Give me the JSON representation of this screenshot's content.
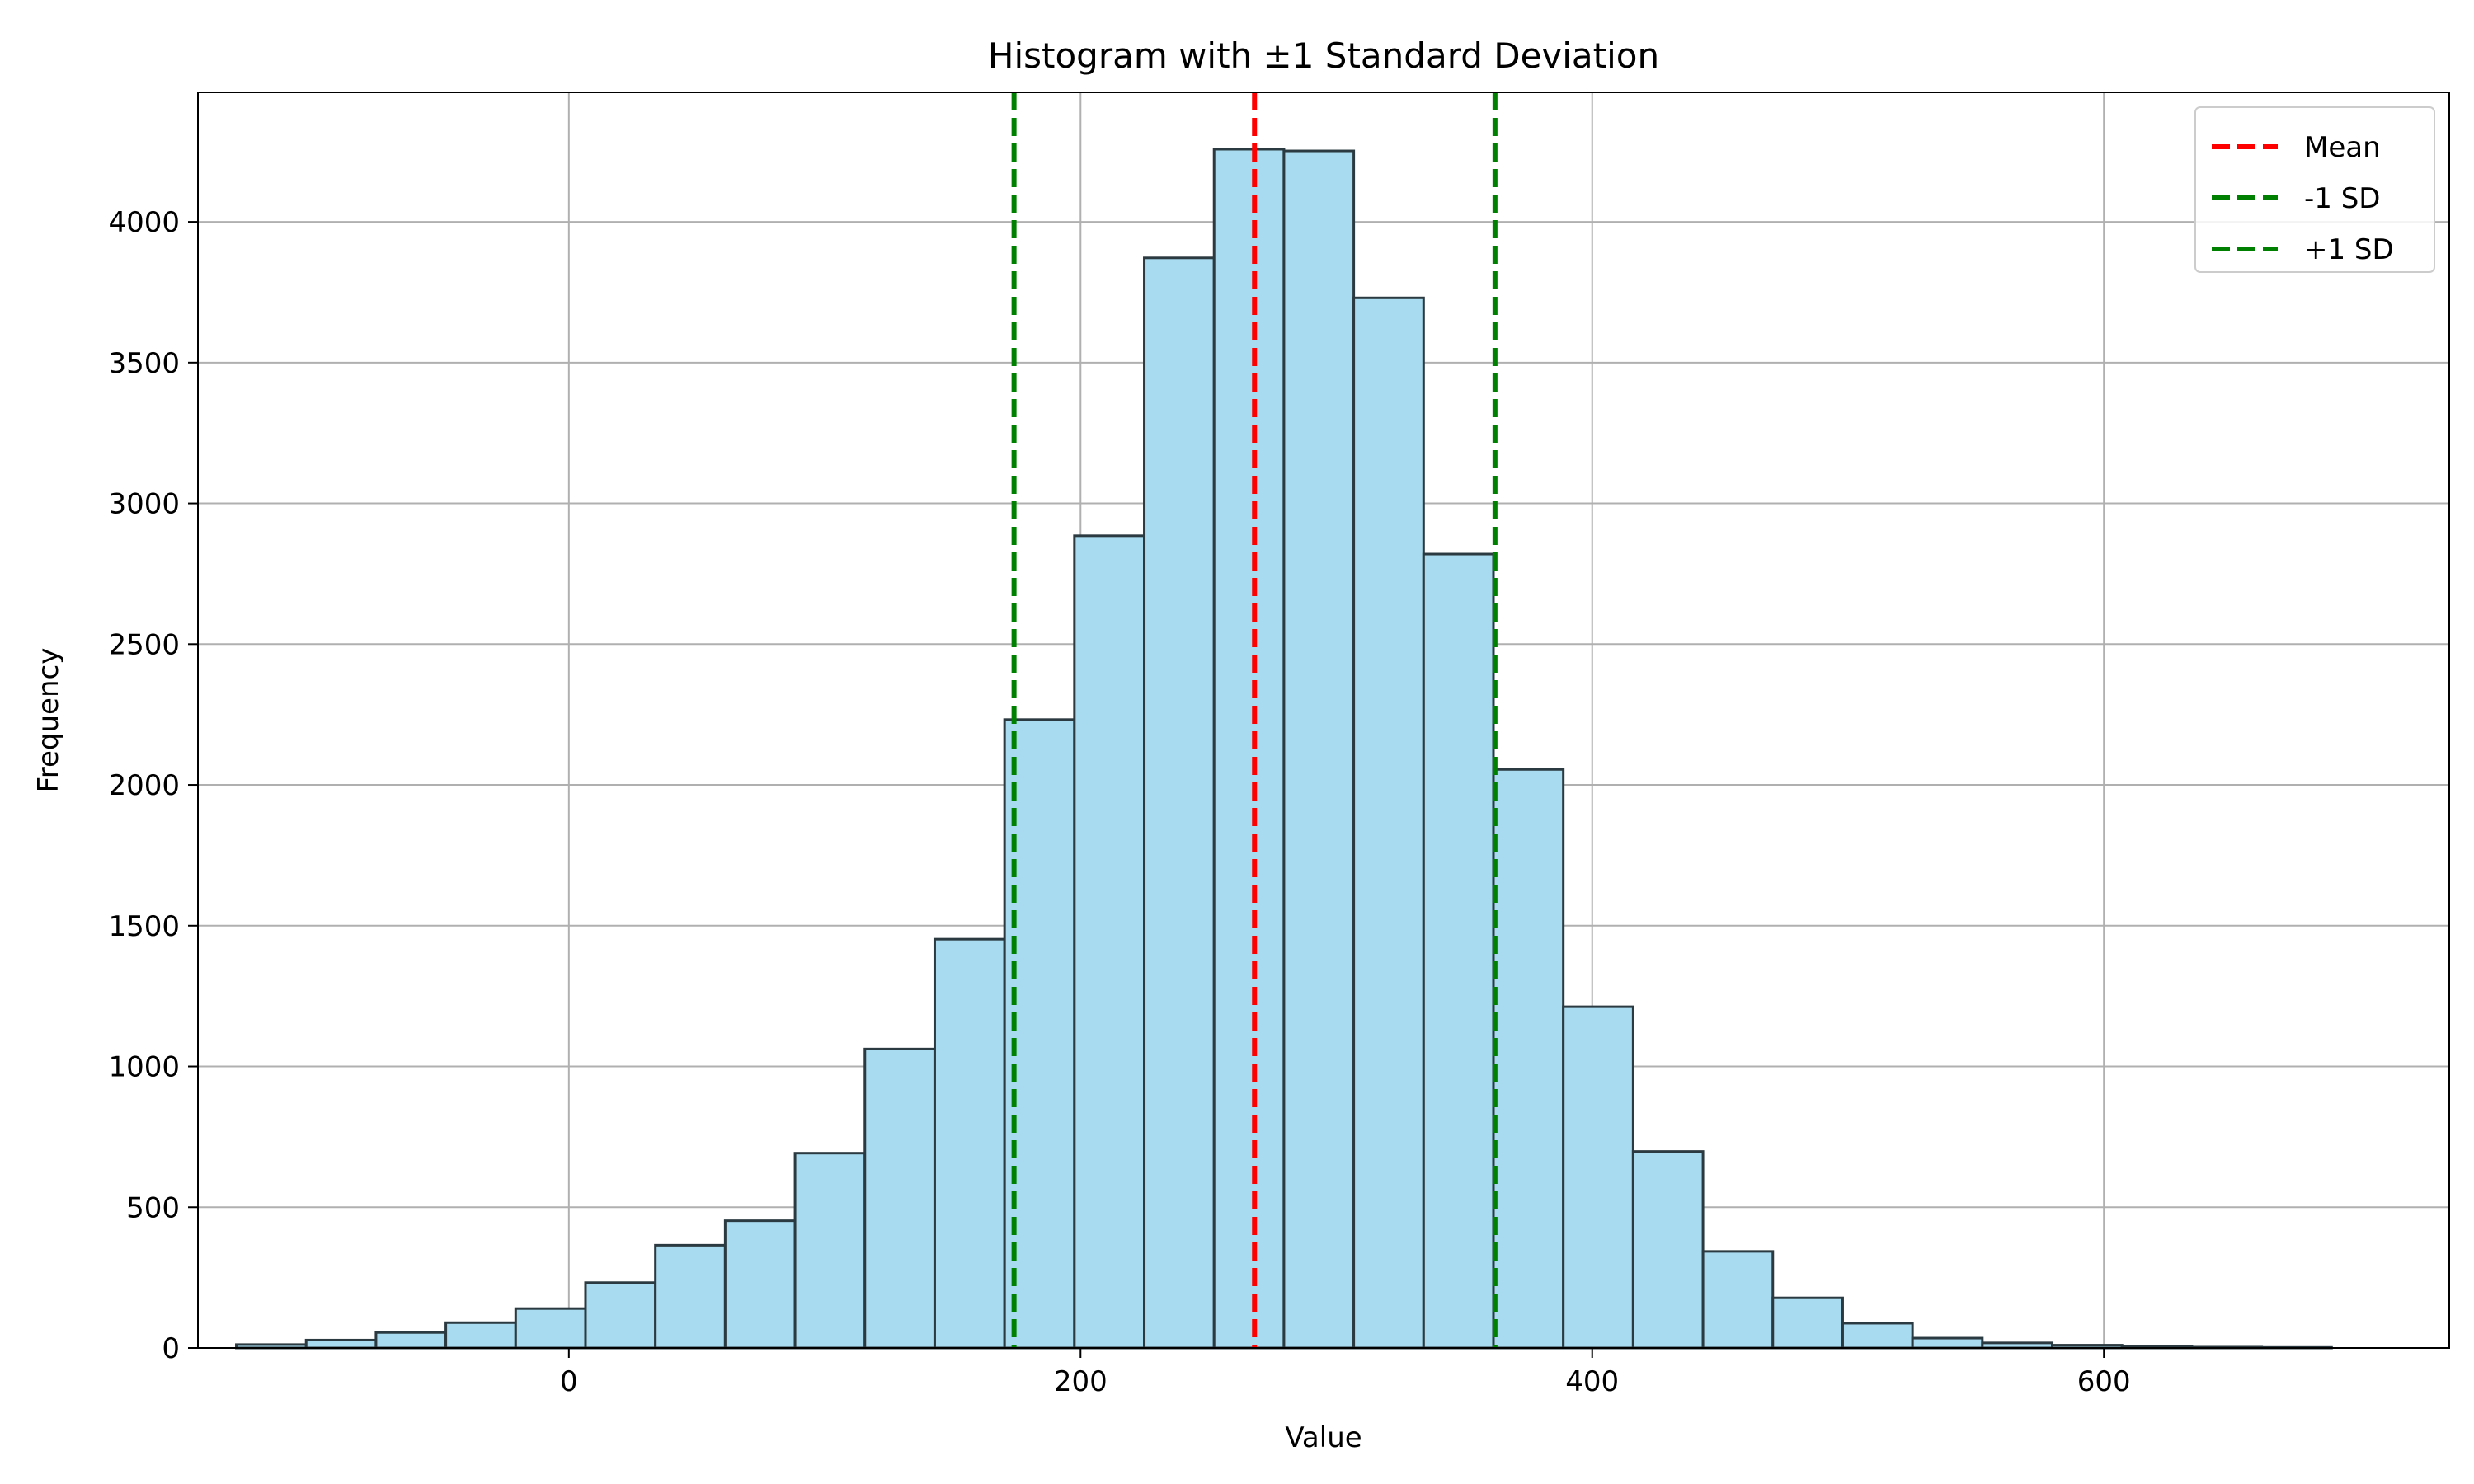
{
  "chart_data": {
    "type": "bar",
    "title": "Histogram with ±1 Standard Deviation",
    "xlabel": "Value",
    "ylabel": "Frequency",
    "xlim": [
      -145,
      735
    ],
    "ylim": [
      0,
      4460
    ],
    "xticks": [
      0,
      200,
      400,
      600
    ],
    "yticks": [
      0,
      500,
      1000,
      1500,
      2000,
      2500,
      3000,
      3500,
      4000
    ],
    "grid": true,
    "bar_color": "#a8dbef",
    "bar_edge_color": "#2b3a40",
    "bins": {
      "start": -130,
      "width": 27.3,
      "values": [
        12,
        28,
        55,
        90,
        140,
        232,
        365,
        452,
        692,
        1062,
        1452,
        2232,
        2885,
        3872,
        4258,
        4252,
        3730,
        2820,
        2055,
        1212,
        698,
        343,
        178,
        88,
        35,
        18,
        10,
        5,
        3,
        2
      ]
    },
    "lines": [
      {
        "name": "Mean",
        "x": 268,
        "color": "#ff0000"
      },
      {
        "name": "-1 SD",
        "x": 174,
        "color": "#008000"
      },
      {
        "name": "+1 SD",
        "x": 362,
        "color": "#008000"
      }
    ],
    "legend": {
      "position": "top-right",
      "entries": [
        {
          "label": "Mean",
          "color": "#ff0000"
        },
        {
          "label": "-1 SD",
          "color": "#008000"
        },
        {
          "label": "+1 SD",
          "color": "#008000"
        }
      ]
    }
  }
}
